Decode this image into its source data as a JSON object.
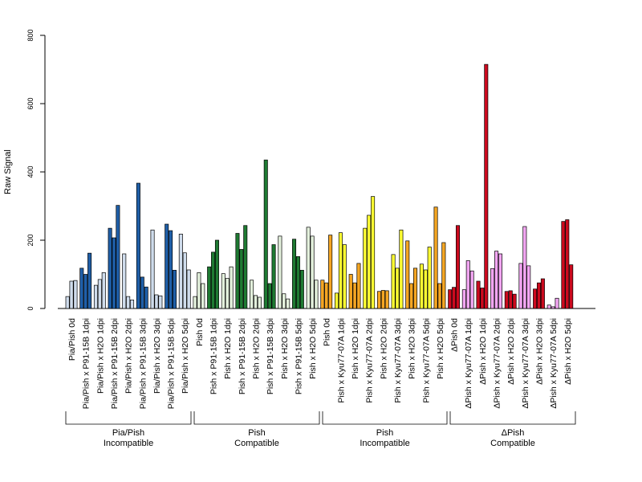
{
  "chart_data": {
    "type": "bar",
    "ylabel": "Raw Signal",
    "ylim": [
      0,
      800
    ],
    "yticks": [
      "0",
      "200",
      "400",
      "600",
      "800"
    ],
    "categories": [
      "Pia/Pish 0d",
      "Pia/Pish x P91-15B 1dpi",
      "Pia/Pish x H2O 1dpi",
      "Pia/Pish x P91-15B 2dpi",
      "Pia/Pish x H2O 2dpi",
      "Pia/Pish x P91-15B 3dpi",
      "Pia/Pish x H2O 3dpi",
      "Pia/Pish x P91-15B 5dpi",
      "Pia/Pish x H2O 5dpi",
      "Pish 0d",
      "Pish x P91-15B 1dpi",
      "Pish x H2O 1dpi",
      "Pish x P91-15B 2dpi",
      "Pish x H2O 2dpi",
      "Pish x P91-15B 3dpi",
      "Pish x H2O 3dpi",
      "Pish x P91-15B 5dpi",
      "Pish x H2O 5dpi",
      "Pish 0d",
      "Pish x Kyu77-07A 1dpi",
      "Pish x H2O 1dpi",
      "Pish x Kyu77-07A 2dpi",
      "Pish x H2O 2dpi",
      "Pish x Kyu77-07A 3dpi",
      "Pish x H2O 3dpi",
      "Pish x Kyu77-07A 5dpi",
      "Pish x H2O 5dpi",
      "ΔPish 0d",
      "ΔPish x Kyu77-07A 1dpi",
      "ΔPish x H2O 1dpi",
      "ΔPish x Kyu77-07A 2dpi",
      "ΔPish x H2O 2dpi",
      "ΔPish x Kyu77-07A 3dpi",
      "ΔPish x H2O 3dpi",
      "ΔPish x Kyu77-07A 5dpi",
      "ΔPish x H2O 5dpi"
    ],
    "values": [
      [
        35,
        80,
        82
      ],
      [
        118,
        100,
        162
      ],
      [
        68,
        85,
        105
      ],
      [
        235,
        207,
        302
      ],
      [
        160,
        35,
        25
      ],
      [
        367,
        92,
        63
      ],
      [
        230,
        40,
        37
      ],
      [
        247,
        228,
        112
      ],
      [
        218,
        163,
        113
      ],
      [
        35,
        105,
        73
      ],
      [
        122,
        165,
        200
      ],
      [
        102,
        88,
        122
      ],
      [
        220,
        173,
        243
      ],
      [
        83,
        38,
        33
      ],
      [
        435,
        73,
        187
      ],
      [
        212,
        43,
        28
      ],
      [
        203,
        152,
        112
      ],
      [
        238,
        212,
        83
      ],
      [
        83,
        75,
        215
      ],
      [
        45,
        222,
        187
      ],
      [
        100,
        75,
        132
      ],
      [
        235,
        273,
        328
      ],
      [
        50,
        53,
        52
      ],
      [
        158,
        118,
        230
      ],
      [
        198,
        73,
        118
      ],
      [
        130,
        113,
        180
      ],
      [
        297,
        73,
        193
      ],
      [
        55,
        62,
        243
      ],
      [
        55,
        140,
        110
      ],
      [
        80,
        60,
        715
      ],
      [
        117,
        168,
        160
      ],
      [
        50,
        52,
        42
      ],
      [
        132,
        240,
        125
      ],
      [
        57,
        75,
        87
      ],
      [
        10,
        5,
        30
      ],
      [
        255,
        260,
        128
      ]
    ],
    "group_colors": [
      "#1f5fa8",
      "#cfdcec",
      "#1e7a32",
      "#e3f0dc",
      "#ffff33",
      "#f5a623",
      "#f2a6f2",
      "#cc0a1e"
    ],
    "groups": [
      {
        "line1": "Pia/Pish",
        "line2": "Incompatible"
      },
      {
        "line1": "Pish",
        "line2": "Compatible"
      },
      {
        "line1": "Pish",
        "line2": "Incompatible"
      },
      {
        "line1": "ΔPish",
        "line2": "Compatible"
      }
    ]
  }
}
